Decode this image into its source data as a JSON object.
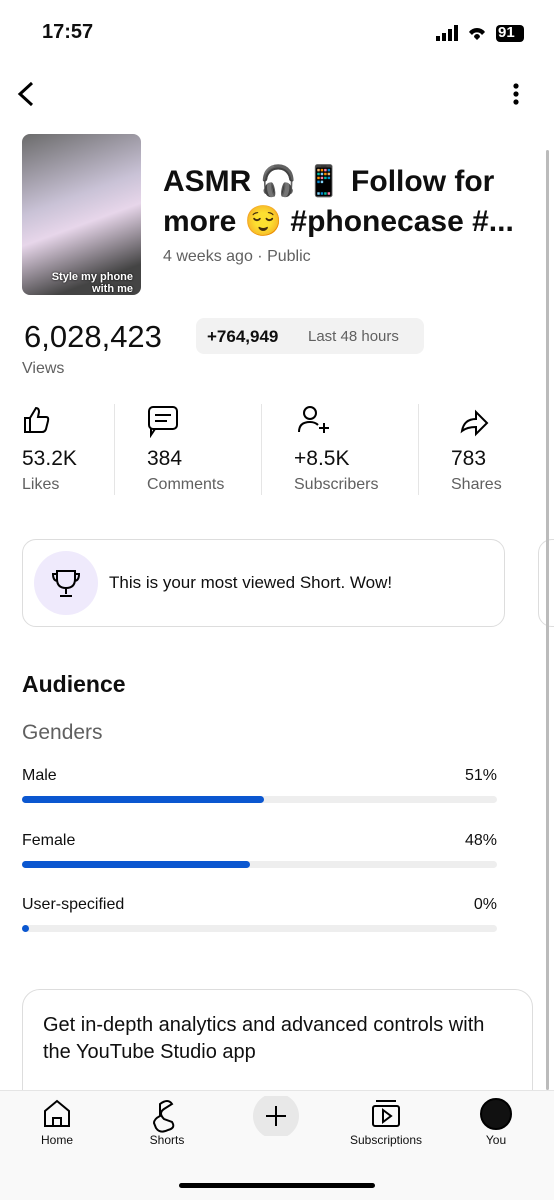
{
  "status_bar": {
    "time": "17:57",
    "battery": "91"
  },
  "video": {
    "title": "ASMR 🎧 📱 Follow for more 😌 #phonecase #...",
    "thumbnail_caption": "Style my phone with me",
    "meta": [
      "4 weeks ago",
      "Public"
    ]
  },
  "views": {
    "count": "6,028,423",
    "label": "Views",
    "recent_change": "+764,949",
    "recent_period": "Last 48 hours"
  },
  "stats": [
    {
      "value": "53.2K",
      "label": "Likes"
    },
    {
      "value": "384",
      "label": "Comments"
    },
    {
      "value": "+8.5K",
      "label": "Subscribers"
    },
    {
      "value": "783",
      "label": "Shares"
    }
  ],
  "highlight": "This is your most viewed Short. Wow!",
  "audience": {
    "title": "Audience",
    "genders": {
      "title": "Genders",
      "categories": [
        "Male",
        "Female",
        "User-specified"
      ],
      "values": [
        51,
        48,
        0
      ],
      "value_labels": [
        "51%",
        "48%",
        "0%"
      ],
      "color": "#0b57d0"
    }
  },
  "promo": "Get in-depth analytics and advanced controls with the YouTube Studio app",
  "nav": [
    "Home",
    "Shorts",
    "Subscriptions",
    "You"
  ]
}
